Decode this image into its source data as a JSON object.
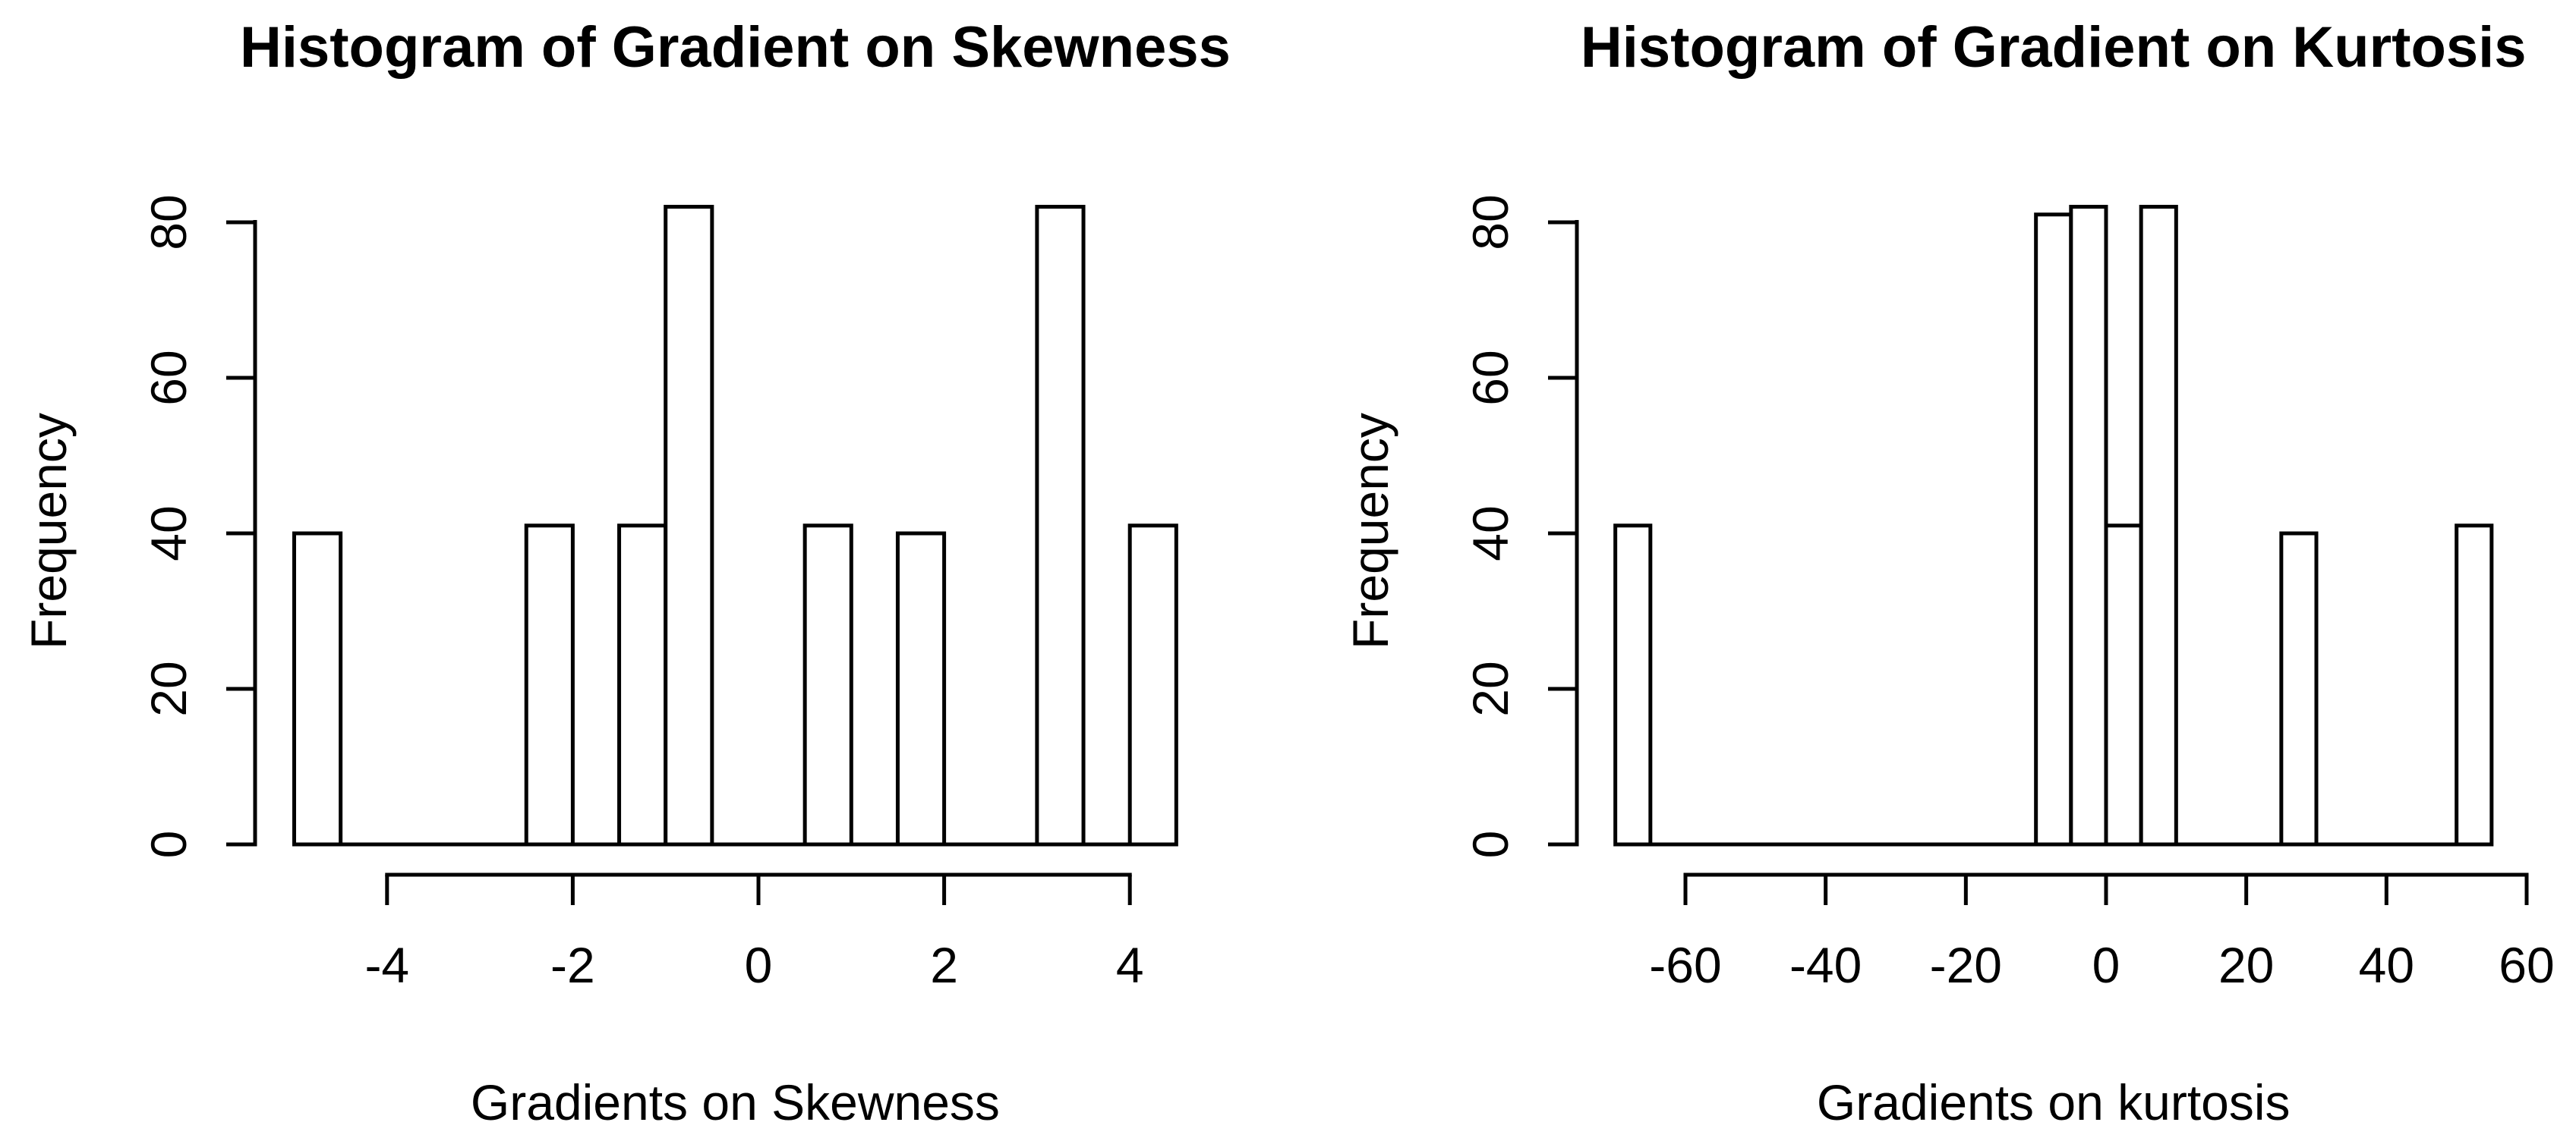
{
  "figure": {
    "background": "#ffffff",
    "ink_color": "#000000"
  },
  "chart_data": [
    {
      "type": "bar",
      "subtype": "histogram",
      "title": "Histogram of Gradient on Skewness",
      "xlabel": "Gradients on Skewness",
      "ylabel": "Frequency",
      "x_ticks": [
        -4,
        -2,
        0,
        2,
        4
      ],
      "y_ticks": [
        0,
        20,
        40,
        60,
        80
      ],
      "xlim": [
        -5,
        4.5
      ],
      "ylim": [
        0,
        82
      ],
      "bin_width": 0.5,
      "grid": false,
      "legend": "none",
      "bins": [
        {
          "from": -5.0,
          "to": -4.5,
          "count": 40
        },
        {
          "from": -2.5,
          "to": -2.0,
          "count": 41
        },
        {
          "from": -1.5,
          "to": -1.0,
          "count": 41
        },
        {
          "from": -1.0,
          "to": -0.5,
          "count": 82
        },
        {
          "from": 0.5,
          "to": 1.0,
          "count": 41
        },
        {
          "from": 1.5,
          "to": 2.0,
          "count": 40
        },
        {
          "from": 3.0,
          "to": 3.5,
          "count": 82
        },
        {
          "from": 4.0,
          "to": 4.5,
          "count": 41
        }
      ]
    },
    {
      "type": "bar",
      "subtype": "histogram",
      "title": "Histogram of Gradient on Kurtosis",
      "xlabel": "Gradients on kurtosis",
      "ylabel": "Frequency",
      "x_ticks": [
        -60,
        -40,
        -20,
        0,
        20,
        40,
        60
      ],
      "y_ticks": [
        0,
        20,
        40,
        60,
        80
      ],
      "xlim": [
        -70,
        55
      ],
      "ylim": [
        0,
        82
      ],
      "bin_width": 5,
      "grid": false,
      "legend": "none",
      "bins": [
        {
          "from": -70,
          "to": -65,
          "count": 41
        },
        {
          "from": -10,
          "to": -5,
          "count": 81
        },
        {
          "from": -5,
          "to": 0,
          "count": 82
        },
        {
          "from": 0,
          "to": 5,
          "count": 41
        },
        {
          "from": 5,
          "to": 10,
          "count": 82
        },
        {
          "from": 25,
          "to": 30,
          "count": 40
        },
        {
          "from": 50,
          "to": 55,
          "count": 41
        }
      ]
    }
  ]
}
